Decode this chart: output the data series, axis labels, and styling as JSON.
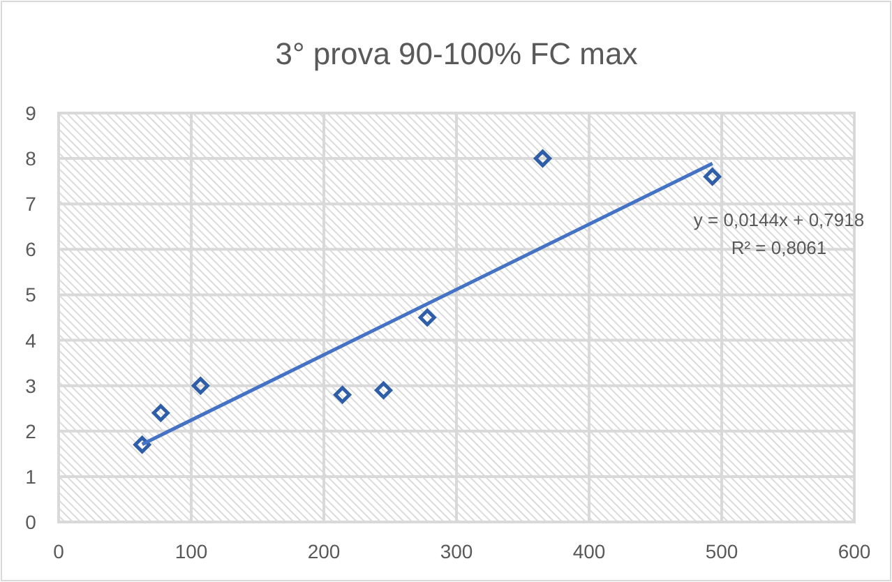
{
  "chart_data": {
    "type": "scatter",
    "title": "3° prova 90-100% FC max",
    "series": [
      {
        "color": "#2e5ea8",
        "x": [
          63,
          77,
          107,
          214,
          245,
          278,
          365,
          493
        ],
        "values": [
          1.7,
          2.4,
          3.0,
          2.8,
          2.9,
          4.5,
          8.0,
          7.6
        ],
        "marker": "diamond"
      },
      {
        "type": "line",
        "color": "#4472c4",
        "x": [
          63,
          493
        ],
        "values": [
          1.71,
          7.89
        ],
        "line_style": "solid"
      }
    ],
    "annotations": [
      "y = 0,0144x + 0,7918",
      "R² = 0,8061"
    ],
    "xlim": [
      0,
      600
    ],
    "xticks": [
      0,
      100,
      200,
      300,
      400,
      500,
      600
    ],
    "ylim": [
      0,
      9
    ],
    "yticks": [
      0,
      1,
      2,
      3,
      4,
      5,
      6,
      7,
      8,
      9
    ],
    "grid": true
  }
}
